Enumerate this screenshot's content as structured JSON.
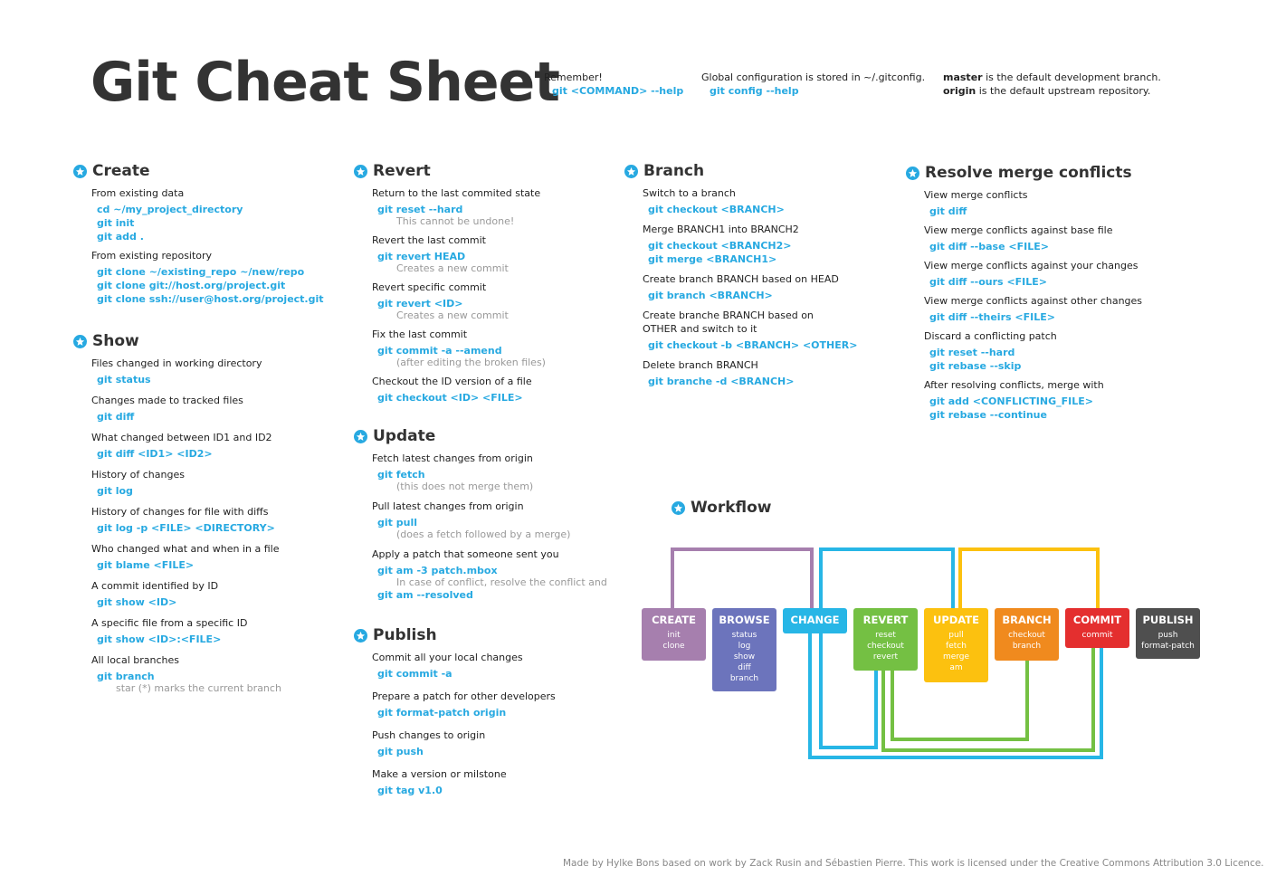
{
  "title": "Git Cheat Sheet",
  "header": {
    "remember": {
      "text": "Remember!",
      "cmd": "git <COMMAND> --help"
    },
    "global": {
      "text": "Global configuration is stored in ~/.gitconfig.",
      "cmd": "git config --help"
    },
    "branches": {
      "master_bold": "master",
      "master_rest": " is the default development branch.",
      "origin_bold": "origin",
      "origin_rest": " is the default upstream repository."
    }
  },
  "colors": {
    "accent": "#27a9e1",
    "create": "#a67fae",
    "browse": "#6c74bc",
    "change": "#27b6e6",
    "revert": "#74c043",
    "update": "#fcc10f",
    "branch": "#f08a1e",
    "commit": "#e42f2f",
    "publish": "#4f4f4f"
  },
  "sections": {
    "create": {
      "title": "Create",
      "items": [
        {
          "desc": "From existing data",
          "cmds": [
            "cd ~/my_project_directory",
            "git init",
            "git add ."
          ],
          "hint": ""
        },
        {
          "desc": "From existing repository",
          "cmds": [
            "git clone ~/existing_repo ~/new/repo",
            "git clone git://host.org/project.git",
            "git clone ssh://user@host.org/project.git"
          ],
          "hint": ""
        }
      ]
    },
    "show": {
      "title": "Show",
      "items": [
        {
          "desc": "Files changed in working directory",
          "cmds": [
            "git status"
          ],
          "hint": ""
        },
        {
          "desc": "Changes made to tracked files",
          "cmds": [
            "git diff"
          ],
          "hint": ""
        },
        {
          "desc": "What changed between ID1 and ID2",
          "cmds": [
            "git diff <ID1> <ID2>"
          ],
          "hint": ""
        },
        {
          "desc": "History of changes",
          "cmds": [
            "git log"
          ],
          "hint": ""
        },
        {
          "desc": "History of changes for file with diffs",
          "cmds": [
            "git log -p <FILE> <DIRECTORY>"
          ],
          "hint": ""
        },
        {
          "desc": "Who changed what and when in a file",
          "cmds": [
            "git blame <FILE>"
          ],
          "hint": ""
        },
        {
          "desc": "A commit identified by ID",
          "cmds": [
            "git show <ID>"
          ],
          "hint": ""
        },
        {
          "desc": "A specific file from a specific ID",
          "cmds": [
            "git show <ID>:<FILE>"
          ],
          "hint": ""
        },
        {
          "desc": "All local branches",
          "cmds": [
            "git branch"
          ],
          "hint": "star (*) marks the current branch"
        }
      ]
    },
    "revert": {
      "title": "Revert",
      "items": [
        {
          "desc": "Return to the last commited state",
          "cmds": [
            "git reset --hard"
          ],
          "hint": "This cannot be undone!"
        },
        {
          "desc": "Revert the last commit",
          "cmds": [
            "git revert HEAD"
          ],
          "hint": "Creates a new commit"
        },
        {
          "desc": "Revert specific commit",
          "cmds": [
            "git revert <ID>"
          ],
          "hint": "Creates a new commit"
        },
        {
          "desc": "Fix the last commit",
          "cmds": [
            "git commit -a --amend"
          ],
          "hint": "(after editing the broken files)"
        },
        {
          "desc": "Checkout the ID version of a file",
          "cmds": [
            "git checkout <ID> <FILE>"
          ],
          "hint": ""
        }
      ]
    },
    "update": {
      "title": "Update",
      "items": [
        {
          "desc": "Fetch latest changes from origin",
          "cmds": [
            "git fetch"
          ],
          "hint": "(this does not merge them)"
        },
        {
          "desc": "Pull latest changes from origin",
          "cmds": [
            "git pull"
          ],
          "hint": "(does a fetch followed by a merge)"
        },
        {
          "desc": "Apply a patch that someone sent you",
          "cmds": [
            "git am -3 patch.mbox"
          ],
          "hint": "In case of conflict, resolve the conflict and"
        },
        {
          "desc": "",
          "cmds": [
            "git am --resolved"
          ],
          "hint": ""
        }
      ]
    },
    "publish": {
      "title": "Publish",
      "items": [
        {
          "desc": "Commit all your local changes",
          "cmds": [
            "git commit -a"
          ],
          "hint": ""
        },
        {
          "desc": "Prepare a patch for other developers",
          "cmds": [
            "git format-patch origin"
          ],
          "hint": ""
        },
        {
          "desc": "Push changes to origin",
          "cmds": [
            "git push"
          ],
          "hint": ""
        },
        {
          "desc": "Make a version or milstone",
          "cmds": [
            "git tag v1.0"
          ],
          "hint": ""
        }
      ]
    },
    "branch": {
      "title": "Branch",
      "items": [
        {
          "desc": "Switch to a branch",
          "cmds": [
            "git checkout <BRANCH>"
          ],
          "hint": ""
        },
        {
          "desc": "Merge BRANCH1 into BRANCH2",
          "cmds": [
            "git checkout <BRANCH2>",
            "git merge <BRANCH1>"
          ],
          "hint": ""
        },
        {
          "desc": "Create branch BRANCH based on HEAD",
          "cmds": [
            "git branch <BRANCH>"
          ],
          "hint": ""
        },
        {
          "desc": "Create branche BRANCH based on OTHER and switch to it",
          "cmds": [
            "git checkout -b <BRANCH> <OTHER>"
          ],
          "hint": ""
        },
        {
          "desc": "Delete branch BRANCH",
          "cmds": [
            "git branche -d <BRANCH>"
          ],
          "hint": ""
        }
      ]
    },
    "resolve": {
      "title": "Resolve merge conflicts",
      "items": [
        {
          "desc": "View merge conflicts",
          "cmds": [
            "git diff"
          ],
          "hint": ""
        },
        {
          "desc": "View merge conflicts against base file",
          "cmds": [
            "git diff --base <FILE>"
          ],
          "hint": ""
        },
        {
          "desc": "View merge conflicts against your changes",
          "cmds": [
            "git diff --ours <FILE>"
          ],
          "hint": ""
        },
        {
          "desc": "View merge conflicts against other changes",
          "cmds": [
            "git diff --theirs <FILE>"
          ],
          "hint": ""
        },
        {
          "desc": "Discard a conflicting patch",
          "cmds": [
            "git reset --hard",
            "git rebase --skip"
          ],
          "hint": ""
        },
        {
          "desc": "After resolving conflicts, merge with",
          "cmds": [
            "git add <CONFLICTING_FILE>",
            "git rebase --continue"
          ],
          "hint": ""
        }
      ]
    }
  },
  "workflow": {
    "title": "Workflow",
    "boxes": [
      {
        "name": "CREATE",
        "cmds": [
          "init",
          "clone"
        ],
        "color": "#a67fae"
      },
      {
        "name": "BROWSE",
        "cmds": [
          "status",
          "log",
          "show",
          "diff",
          "branch"
        ],
        "color": "#6c74bc"
      },
      {
        "name": "CHANGE",
        "cmds": [],
        "color": "#27b6e6"
      },
      {
        "name": "REVERT",
        "cmds": [
          "reset",
          "checkout",
          "revert"
        ],
        "color": "#74c043"
      },
      {
        "name": "UPDATE",
        "cmds": [
          "pull",
          "fetch",
          "merge",
          "am"
        ],
        "color": "#fcc10f"
      },
      {
        "name": "BRANCH",
        "cmds": [
          "checkout",
          "branch"
        ],
        "color": "#f08a1e"
      },
      {
        "name": "COMMIT",
        "cmds": [
          "commit"
        ],
        "color": "#e42f2f"
      },
      {
        "name": "PUBLISH",
        "cmds": [
          "push",
          "format-patch"
        ],
        "color": "#4f4f4f"
      }
    ]
  },
  "footer": "Made by Hylke Bons based on work by Zack Rusin and Sébastien Pierre. This work is licensed under the Creative Commons Attribution 3.0 Licence."
}
